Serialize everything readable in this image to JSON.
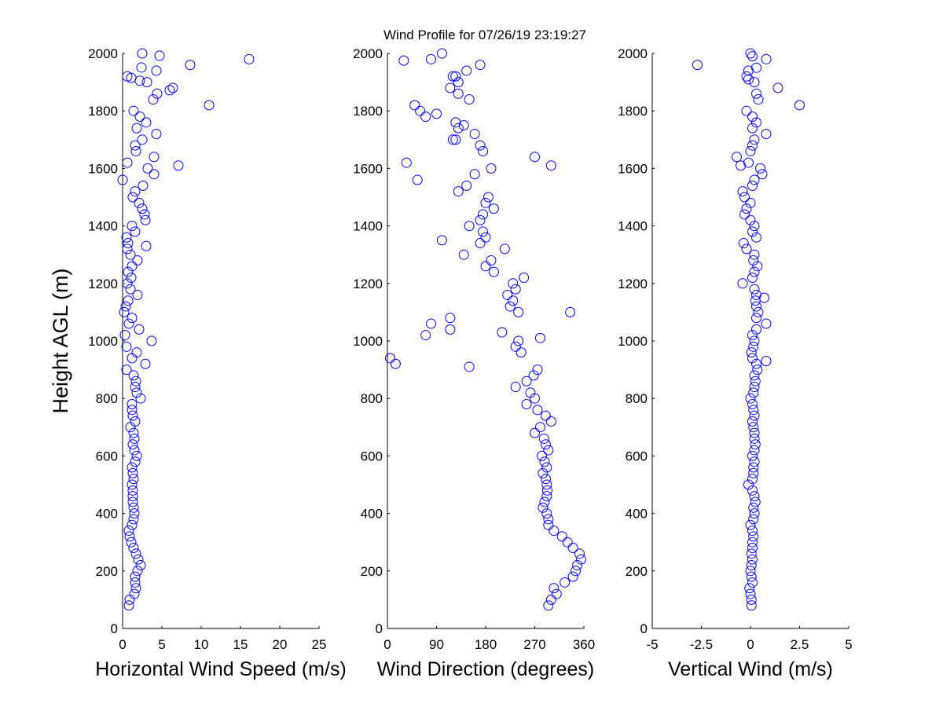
{
  "chart_data": {
    "type": "scatter",
    "title": "Wind Profile for  07/26/19 23:19:27",
    "ylabel": "Height AGL (m)",
    "ylim": [
      0,
      2000
    ],
    "yticks": [
      "0",
      "200",
      "400",
      "600",
      "800",
      "1000",
      "1200",
      "1400",
      "1600",
      "1800",
      "2000"
    ],
    "marker_color": "#0000ff",
    "marker": "open-circle",
    "grid": false,
    "heights": [
      80,
      100,
      120,
      140,
      160,
      180,
      200,
      220,
      240,
      260,
      280,
      300,
      320,
      340,
      360,
      380,
      400,
      420,
      440,
      460,
      480,
      500,
      520,
      540,
      560,
      580,
      600,
      620,
      640,
      660,
      680,
      700,
      720,
      740,
      760,
      780,
      800,
      820,
      840,
      860,
      880,
      900,
      920,
      940,
      960,
      980,
      1000,
      1020,
      1040,
      1060,
      1080,
      1100,
      1120,
      1140,
      1160,
      1180,
      1200,
      1220,
      1240,
      1260,
      1280,
      1300,
      1320,
      1340,
      1360,
      1380,
      1400,
      1420,
      1440,
      1460,
      1480,
      1500,
      1520,
      1540,
      1560,
      1580,
      1600,
      1620,
      1640,
      1660,
      1680,
      1700,
      1720,
      1740,
      1760,
      1780,
      1800,
      1820,
      1840,
      1860,
      1880,
      1900,
      1920,
      1940,
      1960,
      1980,
      2000
    ],
    "panels": [
      {
        "xlabel": "Horizontal Wind Speed (m/s)",
        "xlim": [
          0,
          25
        ],
        "xticks": [
          "0",
          "5",
          "10",
          "15",
          "20",
          "25"
        ],
        "values": [
          0.8,
          0.9,
          1.5,
          1.7,
          1.6,
          1.6,
          1.9,
          2.3,
          2.0,
          1.7,
          1.4,
          1.1,
          0.9,
          0.8,
          1.2,
          1.4,
          1.5,
          1.4,
          1.3,
          1.3,
          1.3,
          1.2,
          1.4,
          1.3,
          1.2,
          1.6,
          1.8,
          1.5,
          1.3,
          1.5,
          1.4,
          1.0,
          1.6,
          1.3,
          1.2,
          1.2,
          2.3,
          1.8,
          1.6,
          1.7,
          1.4,
          0.5,
          2.9,
          1.2,
          1.8,
          0.5,
          3.7,
          0.3,
          2.1,
          0.8,
          1.2,
          0.2,
          0.4,
          0.7,
          1.9,
          1.0,
          0.6,
          1.1,
          0.7,
          1.2,
          1.9,
          1.0,
          0.6,
          0.7,
          0.5,
          1.6,
          1.2,
          2.9,
          2.8,
          2.5,
          2.1,
          1.3,
          1.6,
          2.6,
          0.0,
          4.0,
          3.2,
          0.6,
          4.0,
          1.7,
          1.6,
          2.5,
          4.3,
          1.8,
          3.0,
          2.2,
          1.4,
          11.0,
          3.9,
          4.4,
          6.4,
          3.1,
          0.6,
          4.3,
          8.6,
          16.1,
          2.5
        ],
        "extra_points": [
          [
            7.1,
            1610
          ],
          [
            1.1,
            1915
          ],
          [
            4.7,
            1992
          ],
          [
            2.4,
            1951
          ],
          [
            3.0,
            1330
          ],
          [
            6.0,
            1872
          ],
          [
            2.2,
            1905
          ]
        ]
      },
      {
        "xlabel": "Wind Direction (degrees)",
        "xlim": [
          0,
          360
        ],
        "xticks": [
          "0",
          "90",
          "180",
          "270",
          "360"
        ],
        "values": [
          295,
          300,
          310,
          305,
          325,
          340,
          345,
          348,
          355,
          352,
          340,
          330,
          320,
          305,
          295,
          295,
          292,
          285,
          288,
          292,
          293,
          292,
          290,
          285,
          292,
          288,
          283,
          295,
          290,
          287,
          270,
          280,
          300,
          290,
          275,
          255,
          270,
          262,
          235,
          255,
          268,
          275,
          15,
          5,
          245,
          235,
          240,
          70,
          115,
          80,
          115,
          240,
          225,
          230,
          220,
          235,
          230,
          250,
          195,
          180,
          190,
          140,
          215,
          170,
          180,
          175,
          150,
          170,
          175,
          195,
          180,
          185,
          130,
          145,
          55,
          160,
          190,
          35,
          270,
          175,
          170,
          125,
          160,
          130,
          125,
          70,
          60,
          50,
          150,
          130,
          115,
          130,
          120,
          145,
          170,
          80,
          100
        ],
        "extra_points": [
          [
            150,
            910
          ],
          [
            335,
            1100
          ],
          [
            300,
            1610
          ],
          [
            280,
            1010
          ],
          [
            210,
            1030
          ],
          [
            120,
            1700
          ],
          [
            100,
            1350
          ],
          [
            90,
            1790
          ],
          [
            30,
            1975
          ],
          [
            125,
            1920
          ],
          [
            140,
            1750
          ]
        ]
      },
      {
        "xlabel": "Vertical Wind (m/s)",
        "xlim": [
          -5,
          5
        ],
        "xticks": [
          "-5",
          "-2.5",
          "0",
          "2.5",
          "5"
        ],
        "values": [
          0.05,
          0.05,
          0,
          -0.05,
          0.1,
          0.05,
          0,
          0.05,
          0.1,
          0.05,
          0.1,
          0.1,
          0.15,
          0.1,
          0,
          0.15,
          0.2,
          0.15,
          0.25,
          0.2,
          0.1,
          -0.1,
          0.1,
          0.15,
          0.15,
          0.2,
          0.1,
          0.2,
          0.25,
          0.2,
          0.2,
          0.15,
          0.1,
          0.2,
          0.15,
          0.1,
          0,
          0.15,
          0.2,
          0.25,
          0.2,
          0.35,
          0.3,
          0.1,
          0.05,
          0.15,
          0.2,
          0.1,
          0.3,
          0.8,
          0.3,
          0.4,
          0.3,
          0.25,
          0.3,
          0.2,
          -0.4,
          0.1,
          0.2,
          0.35,
          0.15,
          0.2,
          -0.2,
          -0.35,
          0.3,
          0.1,
          0.2,
          0,
          -0.3,
          -0.2,
          0,
          -0.3,
          -0.4,
          0.1,
          0.2,
          0.6,
          0.5,
          -0.1,
          -0.7,
          0,
          0.1,
          0.2,
          0.8,
          0.1,
          0.3,
          0.1,
          -0.2,
          2.5,
          0.4,
          0.3,
          1.4,
          0.2,
          -0.2,
          -0.1,
          -2.7,
          0.8,
          0
        ],
        "extra_points": [
          [
            0.7,
            1150
          ],
          [
            0.8,
            930
          ],
          [
            -0.5,
            1610
          ],
          [
            0.3,
            1950
          ],
          [
            0.1,
            1990
          ],
          [
            -0.1,
            1910
          ]
        ]
      }
    ]
  }
}
